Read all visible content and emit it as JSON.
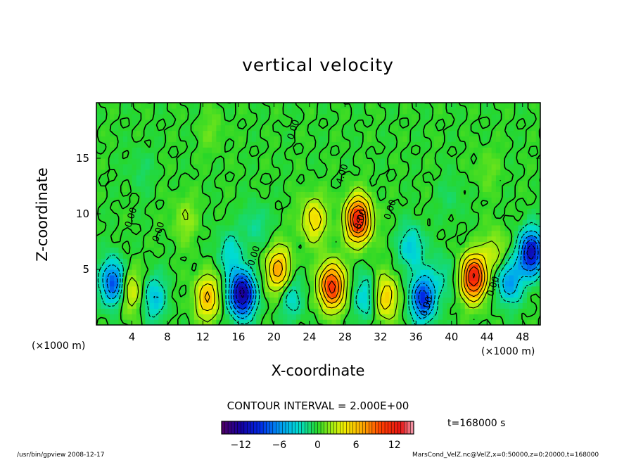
{
  "chart_data": {
    "type": "heatmap",
    "title": "vertical velocity",
    "xlabel": "X-coordinate",
    "ylabel": "Z-coordinate",
    "x_unit_label": "(×1000 m)",
    "xlim": [
      0,
      50
    ],
    "ylim": [
      0,
      20
    ],
    "x_ticks": [
      4,
      8,
      12,
      16,
      20,
      24,
      28,
      32,
      36,
      40,
      44,
      48
    ],
    "y_ticks": [
      5,
      10,
      15
    ],
    "contour_interval_text": "CONTOUR INTERVAL = 2.000E+00",
    "colorbar": {
      "range": [
        -15,
        15
      ],
      "ticks": [
        -12,
        -6,
        0,
        6,
        12
      ],
      "tick_labels": [
        "−12",
        "−6",
        "0",
        "6",
        "12"
      ]
    },
    "contour_labels": [
      {
        "text": "4.00",
        "x": 28.0,
        "y": 13.5
      },
      {
        "text": "-8.00",
        "x": 30.0,
        "y": 9.3
      },
      {
        "text": "0.00",
        "x": 33.4,
        "y": 10.3
      },
      {
        "text": "0.00",
        "x": 45.0,
        "y": 3.4
      },
      {
        "text": "0.00",
        "x": 37.5,
        "y": 1.6
      },
      {
        "text": "-0.00",
        "x": 18.0,
        "y": 6.0
      },
      {
        "text": "0.00",
        "x": 4.2,
        "y": 9.6
      },
      {
        "text": "0.00",
        "x": 7.3,
        "y": 8.3
      },
      {
        "text": "0.00",
        "x": 22.5,
        "y": 17.5
      }
    ],
    "features": [
      {
        "x": 2.0,
        "y": 3.8,
        "value": -9
      },
      {
        "x": 3.6,
        "y": 3.2,
        "value": 5
      },
      {
        "x": 6.5,
        "y": 2.5,
        "value": -4
      },
      {
        "x": 10.0,
        "y": 9.5,
        "value": 2
      },
      {
        "x": 12.5,
        "y": 2.5,
        "value": 6
      },
      {
        "x": 15.0,
        "y": 6.5,
        "value": -3
      },
      {
        "x": 16.4,
        "y": 2.8,
        "value": -13
      },
      {
        "x": 18.0,
        "y": 9.0,
        "value": -2
      },
      {
        "x": 20.5,
        "y": 5.0,
        "value": 7
      },
      {
        "x": 22.0,
        "y": 2.5,
        "value": -3
      },
      {
        "x": 24.5,
        "y": 9.5,
        "value": 5
      },
      {
        "x": 26.5,
        "y": 3.5,
        "value": 11
      },
      {
        "x": 29.5,
        "y": 9.5,
        "value": 12
      },
      {
        "x": 30.5,
        "y": 2.5,
        "value": -4
      },
      {
        "x": 32.5,
        "y": 2.5,
        "value": 6
      },
      {
        "x": 35.5,
        "y": 7.0,
        "value": -4
      },
      {
        "x": 36.8,
        "y": 2.4,
        "value": -9
      },
      {
        "x": 39.0,
        "y": 4.5,
        "value": -2
      },
      {
        "x": 42.5,
        "y": 4.3,
        "value": 12
      },
      {
        "x": 45.0,
        "y": 6.5,
        "value": 3
      },
      {
        "x": 46.5,
        "y": 4.0,
        "value": -6
      },
      {
        "x": 49.0,
        "y": 6.5,
        "value": -11
      },
      {
        "x": 5.0,
        "y": 14.0,
        "value": -1
      },
      {
        "x": 13.0,
        "y": 17.5,
        "value": 1
      },
      {
        "x": 40.0,
        "y": 11.5,
        "value": -1
      },
      {
        "x": 44.0,
        "y": 14.0,
        "value": 1
      }
    ]
  },
  "time_label": "t=168000 s",
  "footer": {
    "left": "/usr/bin/gpview   2008-12-17",
    "right": "MarsCond_VelZ.nc@VelZ,x=0:50000,z=0:20000,t=168000"
  },
  "colors": {
    "background": "#ffffff",
    "axis": "#000000"
  }
}
